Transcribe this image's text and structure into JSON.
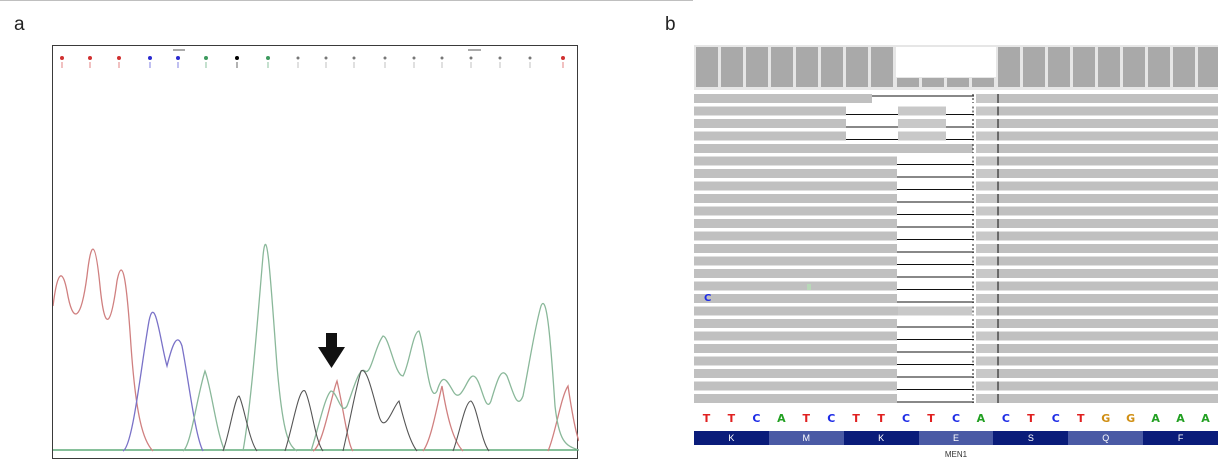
{
  "panel_a": {
    "letter": "a",
    "colors": {
      "A": "#3d9a5e",
      "C": "#2a2ad0",
      "G": "#000000",
      "T": "#d03030"
    },
    "arrow_icon": "down-arrow-icon"
  },
  "panel_b": {
    "letter": "b",
    "reference": [
      "T",
      "T",
      "C",
      "A",
      "T",
      "C",
      "T",
      "T",
      "C",
      "T",
      "C",
      "A",
      "C",
      "T",
      "C",
      "T",
      "G",
      "G",
      "A",
      "A",
      "A"
    ],
    "amino_acids": [
      "K",
      "M",
      "K",
      "E",
      "S",
      "Q",
      "F"
    ],
    "gene": "MEN1",
    "read_base": "C",
    "base_colors": {
      "A": "#22a022",
      "C": "#1e2ce6",
      "G": "#d08f14",
      "T": "#e02020"
    },
    "amino_colors": [
      "#0a1c7a",
      "#4a5aa5"
    ]
  }
}
